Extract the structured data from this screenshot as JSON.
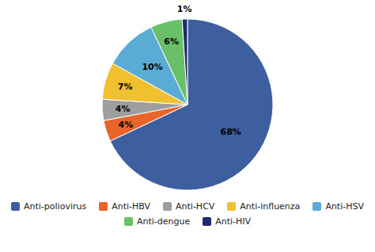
{
  "chart_data": {
    "type": "pie",
    "categories": [
      "Anti-poliovirus",
      "Anti-HBV",
      "Anti-HCV",
      "Anti-influenza",
      "Anti-HSV",
      "Anti-dengue",
      "Anti-HIV"
    ],
    "values": [
      68,
      4,
      4,
      7,
      10,
      6,
      1
    ],
    "value_labels": [
      "68%",
      "4%",
      "4%",
      "7%",
      "10%",
      "6%",
      "1%"
    ],
    "colors": [
      "#3d5fa0",
      "#e8642a",
      "#9e9e9e",
      "#f0c030",
      "#5bacd4",
      "#6abf69",
      "#1e2d6b"
    ],
    "data_labels": true,
    "legend": "bottom"
  }
}
